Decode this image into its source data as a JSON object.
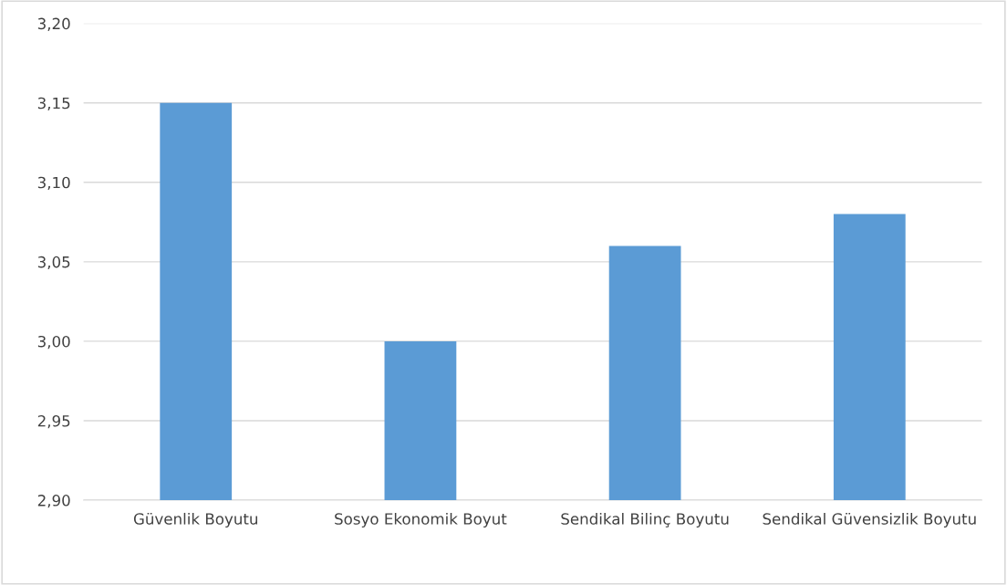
{
  "chart_data": {
    "type": "bar",
    "categories": [
      "Güvenlik Boyutu",
      "Sosyo Ekonomik Boyut",
      "Sendikal Bilinç Boyutu",
      "Sendikal Güvensizlik Boyutu"
    ],
    "values": [
      3.15,
      3.0,
      3.06,
      3.08
    ],
    "color": "#5b9bd5",
    "ylim": [
      2.9,
      3.2
    ],
    "yticks": [
      {
        "value": 2.9,
        "label": "2,90"
      },
      {
        "value": 2.95,
        "label": "2,95"
      },
      {
        "value": 3.0,
        "label": "3,00"
      },
      {
        "value": 3.05,
        "label": "3,05"
      },
      {
        "value": 3.1,
        "label": "3,10"
      },
      {
        "value": 3.15,
        "label": "3,15"
      },
      {
        "value": 3.2,
        "label": "3,20"
      }
    ],
    "grid": "y"
  }
}
